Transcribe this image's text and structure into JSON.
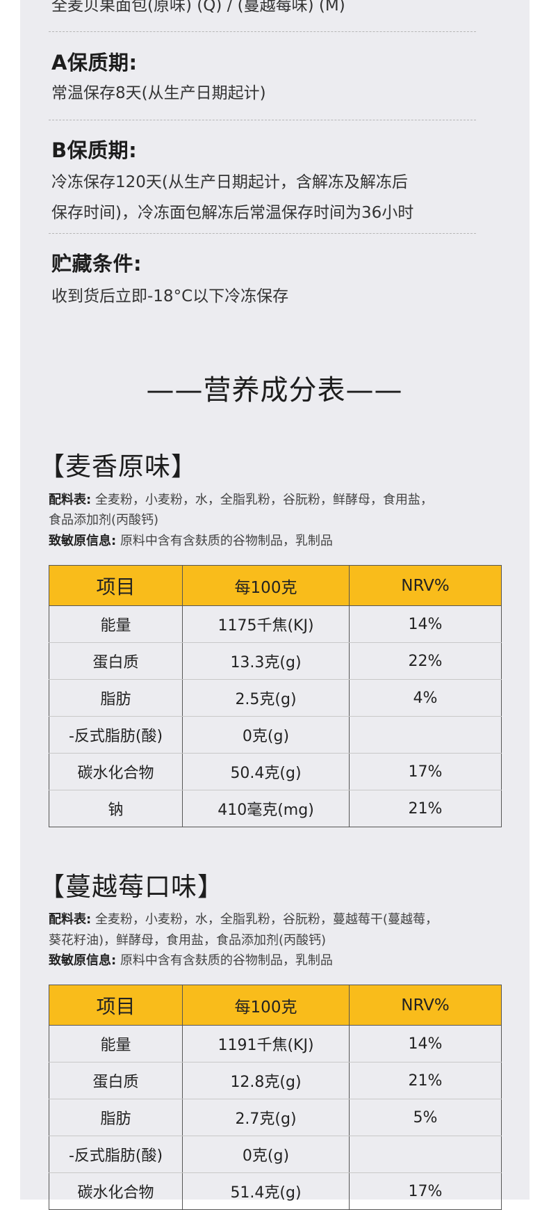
{
  "top": {
    "cut_line": "全麦贝果面包(原味) (Q) / (蔓越莓味) (M)",
    "shelf_a": {
      "title": "A保质期:",
      "text": "常温保存8天(从生产日期起计)"
    },
    "shelf_b": {
      "title": "B保质期:",
      "line1": "冷冻保存120天(从生产日期起计，含解冻及解冻后",
      "line2": "保存时间)，冷冻面包解冻后常温保存时间为36小时"
    },
    "storage": {
      "title": "贮藏条件:",
      "text": "收到货后立即-18°C以下冷冻保存"
    }
  },
  "nutrition_title": "——营养成分表——",
  "flavors": [
    {
      "name": "【麦香原味】",
      "ingredients_label": "配料表:",
      "ingredients_line1": "全麦粉，小麦粉，水，全脂乳粉，谷朊粉，鲜酵母，食用盐，",
      "ingredients_line2": "食品添加剂(丙酸钙)",
      "allergen_label": "致敏原信息:",
      "allergen_text": "原料中含有含麸质的谷物制品，乳制品",
      "headers": [
        "项目",
        "每100克",
        "NRV%"
      ],
      "rows": [
        [
          "能量",
          "1175千焦(KJ)",
          "14%"
        ],
        [
          "蛋白质",
          "13.3克(g)",
          "22%"
        ],
        [
          "脂肪",
          "2.5克(g)",
          "4%"
        ],
        [
          "-反式脂肪(酸)",
          "0克(g)",
          ""
        ],
        [
          "碳水化合物",
          "50.4克(g)",
          "17%"
        ],
        [
          "钠",
          "410毫克(mg)",
          "21%"
        ]
      ]
    },
    {
      "name": "【蔓越莓口味】",
      "ingredients_label": "配料表:",
      "ingredients_line1": "全麦粉，小麦粉，水，全脂乳粉，谷朊粉，蔓越莓干(蔓越莓，",
      "ingredients_line2": "葵花籽油)，鲜酵母，食用盐，食品添加剂(丙酸钙)",
      "allergen_label": "致敏原信息:",
      "allergen_text": "原料中含有含麸质的谷物制品，乳制品",
      "headers": [
        "项目",
        "每100克",
        "NRV%"
      ],
      "rows": [
        [
          "能量",
          "1191千焦(KJ)",
          "14%"
        ],
        [
          "蛋白质",
          "12.8克(g)",
          "21%"
        ],
        [
          "脂肪",
          "2.7克(g)",
          "5%"
        ],
        [
          "-反式脂肪(酸)",
          "0克(g)",
          ""
        ],
        [
          "碳水化合物",
          "51.4克(g)",
          "17%"
        ]
      ]
    }
  ],
  "colors": {
    "panel": "#ececf0",
    "header": "#f9bc1b"
  }
}
